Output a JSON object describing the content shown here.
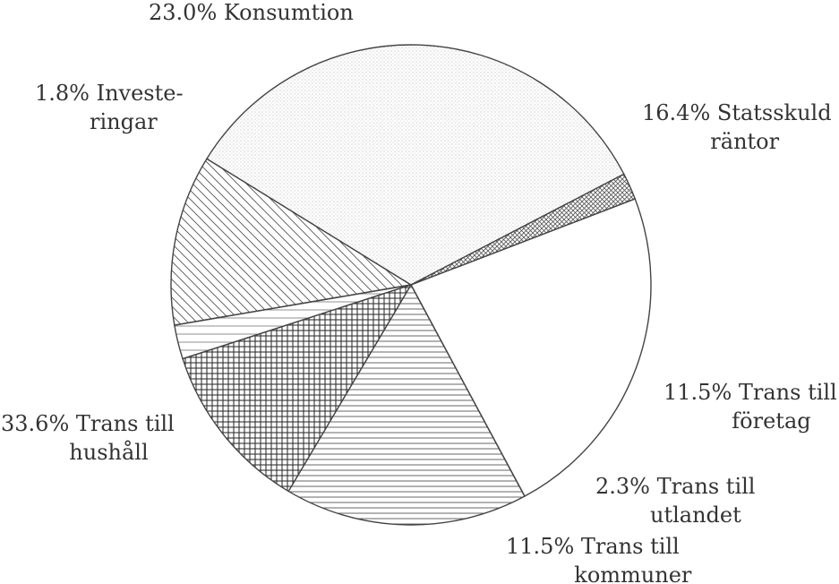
{
  "chart_data": {
    "type": "pie",
    "slices": [
      {
        "name": "Konsumtion",
        "value": 23.0,
        "lines": [
          "23.0% Konsumtion"
        ],
        "pattern": "white"
      },
      {
        "name": "Statsskuld räntor",
        "value": 16.4,
        "lines": [
          "16.4% Statsskuld",
          "räntor"
        ],
        "pattern": "horizontal-lines"
      },
      {
        "name": "Trans till företag",
        "value": 11.5,
        "lines": [
          "11.5% Trans till",
          "företag"
        ],
        "pattern": "grid"
      },
      {
        "name": "Trans till utlandet",
        "value": 2.3,
        "lines": [
          "2.3% Trans till",
          "utlandet"
        ],
        "pattern": "horizontal-lines-sparse"
      },
      {
        "name": "Trans till kommuner",
        "value": 11.5,
        "lines": [
          "11.5% Trans till",
          "kommuner"
        ],
        "pattern": "diagonal-down"
      },
      {
        "name": "Trans till hushåll",
        "value": 33.6,
        "lines": [
          "33.6% Trans till",
          "hushåll"
        ],
        "pattern": "dots"
      },
      {
        "name": "Investeringar",
        "value": 1.8,
        "lines": [
          "1.8% Investe-",
          "ringar"
        ],
        "pattern": "crosshatch-diagonal"
      }
    ]
  }
}
